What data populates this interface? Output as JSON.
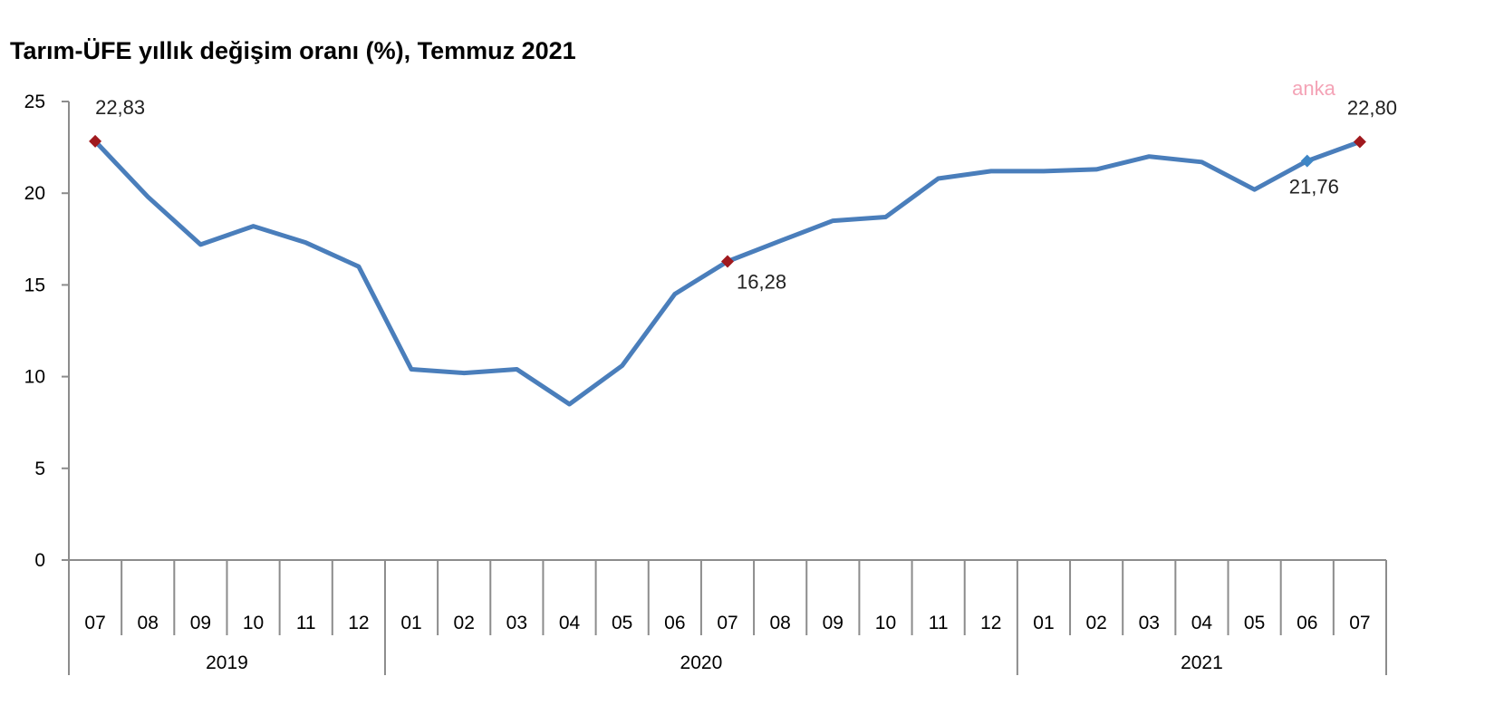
{
  "chart_data": {
    "type": "line",
    "title": "Tarım-ÜFE yıllık değişim oranı (%), Temmuz 2021",
    "watermark": "anka",
    "xlabel": "",
    "ylabel": "",
    "ylim": [
      0,
      25
    ],
    "y_ticks": [
      "0",
      "5",
      "10",
      "15",
      "20",
      "25"
    ],
    "grid": false,
    "categories": [
      "07",
      "08",
      "09",
      "10",
      "11",
      "12",
      "01",
      "02",
      "03",
      "04",
      "05",
      "06",
      "07",
      "08",
      "09",
      "10",
      "11",
      "12",
      "01",
      "02",
      "03",
      "04",
      "05",
      "06",
      "07"
    ],
    "year_groups": [
      {
        "label": "2019",
        "count": 6
      },
      {
        "label": "2020",
        "count": 12
      },
      {
        "label": "2021",
        "count": 7
      }
    ],
    "series": [
      {
        "values": [
          22.83,
          19.8,
          17.2,
          18.2,
          17.3,
          16.0,
          10.4,
          10.2,
          10.4,
          8.5,
          10.6,
          14.5,
          16.28,
          17.4,
          18.5,
          18.7,
          20.8,
          21.2,
          21.2,
          21.3,
          22.0,
          21.7,
          20.2,
          21.76,
          22.8
        ],
        "color": "#4A7EBB"
      }
    ],
    "highlight_points": [
      {
        "index": 0,
        "label": "22,83",
        "color": "#A0191E"
      },
      {
        "index": 12,
        "label": "16,28",
        "color": "#A0191E"
      },
      {
        "index": 23,
        "label": "21,76",
        "color": "#3E86C6"
      },
      {
        "index": 24,
        "label": "22,80",
        "color": "#A0191E"
      }
    ],
    "colors": {
      "line": "#4A7EBB",
      "axis": "#8C8C8C",
      "text": "#000000",
      "label_text": "#222222",
      "watermark": "#F4A3B6"
    }
  }
}
